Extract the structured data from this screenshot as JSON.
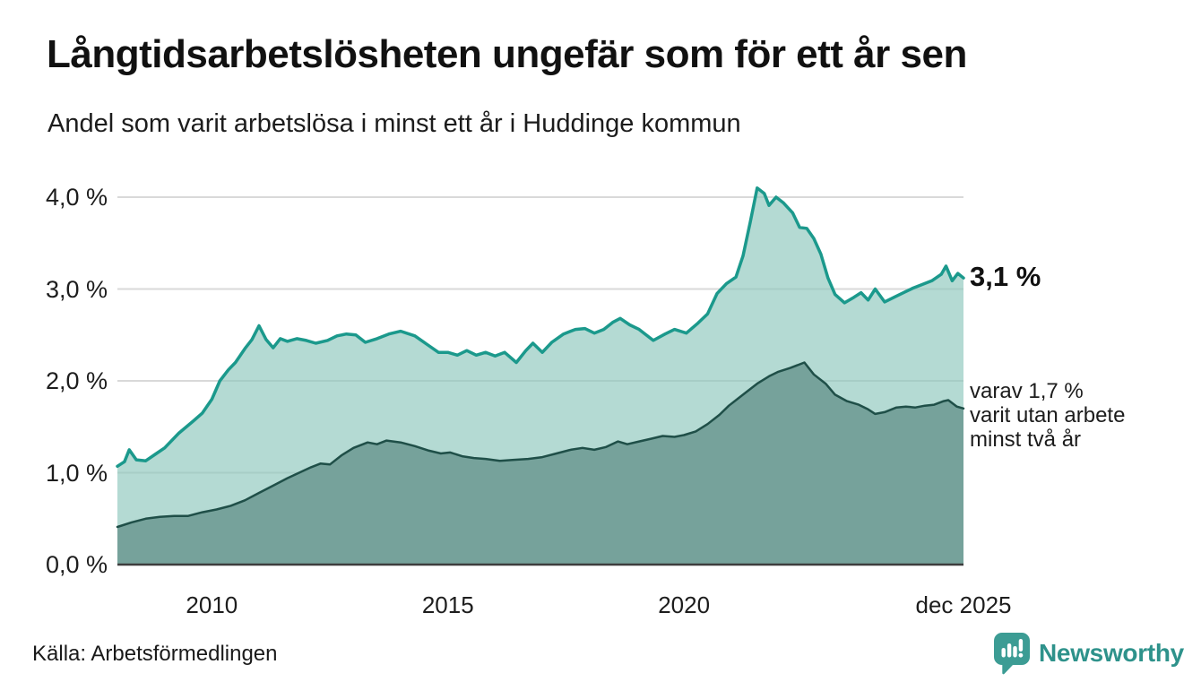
{
  "header": {
    "title": "Långtidsarbetslösheten ungefär som för ett år sen",
    "subtitle": "Andel som varit arbetslösa i minst ett år i Huddinge kommun"
  },
  "chart_data": {
    "type": "area",
    "title": "Långtidsarbetslösheten ungefär som för ett år sen",
    "subtitle": "Andel som varit arbetslösa i minst ett år i Huddinge kommun",
    "xlabel": "",
    "ylabel": "",
    "unit": "%",
    "grid": true,
    "x_axis": {
      "range": [
        2008.0,
        2025.92
      ],
      "ticks": [
        {
          "label": "2010",
          "year": 2010
        },
        {
          "label": "2015",
          "year": 2015
        },
        {
          "label": "2020",
          "year": 2020
        },
        {
          "label": "dec 2025",
          "year": 2025.92
        }
      ]
    },
    "y_axis": {
      "range": [
        0,
        4.3
      ],
      "ticks": [
        {
          "label": "0,0 %",
          "value": 0
        },
        {
          "label": "1,0 %",
          "value": 1
        },
        {
          "label": "2,0 %",
          "value": 2
        },
        {
          "label": "3,0 %",
          "value": 3
        },
        {
          "label": "4,0 %",
          "value": 4
        }
      ]
    },
    "series": [
      {
        "name": "Andel arbetslösa minst ett år",
        "end_value": "3,1 %",
        "line_color": "#1B998C",
        "line_width": 3.5,
        "fill_color": "#8DC7BC",
        "fill_opacity": 0.66,
        "points": [
          [
            2008.0,
            1.07
          ],
          [
            2008.15,
            1.12
          ],
          [
            2008.25,
            1.25
          ],
          [
            2008.4,
            1.14
          ],
          [
            2008.6,
            1.13
          ],
          [
            2008.8,
            1.2
          ],
          [
            2009.0,
            1.27
          ],
          [
            2009.3,
            1.43
          ],
          [
            2009.6,
            1.56
          ],
          [
            2009.8,
            1.65
          ],
          [
            2010.0,
            1.8
          ],
          [
            2010.17,
            2.0
          ],
          [
            2010.35,
            2.12
          ],
          [
            2010.5,
            2.2
          ],
          [
            2010.7,
            2.35
          ],
          [
            2010.85,
            2.45
          ],
          [
            2011.0,
            2.6
          ],
          [
            2011.15,
            2.45
          ],
          [
            2011.3,
            2.36
          ],
          [
            2011.45,
            2.46
          ],
          [
            2011.6,
            2.43
          ],
          [
            2011.8,
            2.46
          ],
          [
            2012.0,
            2.44
          ],
          [
            2012.2,
            2.41
          ],
          [
            2012.45,
            2.44
          ],
          [
            2012.65,
            2.49
          ],
          [
            2012.85,
            2.51
          ],
          [
            2013.05,
            2.5
          ],
          [
            2013.25,
            2.42
          ],
          [
            2013.5,
            2.46
          ],
          [
            2013.75,
            2.51
          ],
          [
            2014.0,
            2.54
          ],
          [
            2014.3,
            2.49
          ],
          [
            2014.55,
            2.4
          ],
          [
            2014.8,
            2.31
          ],
          [
            2015.0,
            2.31
          ],
          [
            2015.2,
            2.28
          ],
          [
            2015.4,
            2.33
          ],
          [
            2015.6,
            2.28
          ],
          [
            2015.8,
            2.31
          ],
          [
            2016.0,
            2.27
          ],
          [
            2016.2,
            2.31
          ],
          [
            2016.45,
            2.2
          ],
          [
            2016.65,
            2.33
          ],
          [
            2016.8,
            2.41
          ],
          [
            2017.0,
            2.31
          ],
          [
            2017.2,
            2.42
          ],
          [
            2017.45,
            2.51
          ],
          [
            2017.7,
            2.56
          ],
          [
            2017.9,
            2.57
          ],
          [
            2018.1,
            2.52
          ],
          [
            2018.3,
            2.56
          ],
          [
            2018.5,
            2.64
          ],
          [
            2018.65,
            2.68
          ],
          [
            2018.85,
            2.61
          ],
          [
            2019.05,
            2.56
          ],
          [
            2019.35,
            2.44
          ],
          [
            2019.6,
            2.51
          ],
          [
            2019.8,
            2.56
          ],
          [
            2020.05,
            2.52
          ],
          [
            2020.3,
            2.63
          ],
          [
            2020.5,
            2.73
          ],
          [
            2020.7,
            2.95
          ],
          [
            2020.9,
            3.06
          ],
          [
            2021.1,
            3.13
          ],
          [
            2021.25,
            3.36
          ],
          [
            2021.4,
            3.72
          ],
          [
            2021.55,
            4.1
          ],
          [
            2021.7,
            4.04
          ],
          [
            2021.8,
            3.91
          ],
          [
            2021.95,
            4.0
          ],
          [
            2022.1,
            3.94
          ],
          [
            2022.3,
            3.83
          ],
          [
            2022.45,
            3.67
          ],
          [
            2022.6,
            3.66
          ],
          [
            2022.75,
            3.55
          ],
          [
            2022.9,
            3.38
          ],
          [
            2023.05,
            3.12
          ],
          [
            2023.2,
            2.94
          ],
          [
            2023.4,
            2.85
          ],
          [
            2023.6,
            2.91
          ],
          [
            2023.75,
            2.96
          ],
          [
            2023.9,
            2.88
          ],
          [
            2024.05,
            3.0
          ],
          [
            2024.25,
            2.86
          ],
          [
            2024.45,
            2.91
          ],
          [
            2024.65,
            2.96
          ],
          [
            2024.85,
            3.01
          ],
          [
            2025.05,
            3.05
          ],
          [
            2025.25,
            3.09
          ],
          [
            2025.45,
            3.16
          ],
          [
            2025.55,
            3.25
          ],
          [
            2025.68,
            3.09
          ],
          [
            2025.8,
            3.17
          ],
          [
            2025.92,
            3.12
          ]
        ]
      },
      {
        "name": "varav utan arbete minst två år",
        "end_value": "1,7 %",
        "line_color": "#1F4F48",
        "line_width": 2.5,
        "fill_color": "#76A29B",
        "fill_opacity": 1,
        "points": [
          [
            2008.0,
            0.41
          ],
          [
            2008.3,
            0.46
          ],
          [
            2008.6,
            0.5
          ],
          [
            2008.9,
            0.52
          ],
          [
            2009.2,
            0.53
          ],
          [
            2009.5,
            0.53
          ],
          [
            2009.8,
            0.57
          ],
          [
            2010.1,
            0.6
          ],
          [
            2010.4,
            0.64
          ],
          [
            2010.7,
            0.7
          ],
          [
            2011.0,
            0.78
          ],
          [
            2011.3,
            0.86
          ],
          [
            2011.6,
            0.94
          ],
          [
            2011.85,
            1.0
          ],
          [
            2012.1,
            1.06
          ],
          [
            2012.3,
            1.1
          ],
          [
            2012.5,
            1.09
          ],
          [
            2012.75,
            1.19
          ],
          [
            2013.0,
            1.27
          ],
          [
            2013.3,
            1.33
          ],
          [
            2013.5,
            1.31
          ],
          [
            2013.7,
            1.35
          ],
          [
            2014.0,
            1.33
          ],
          [
            2014.3,
            1.29
          ],
          [
            2014.6,
            1.24
          ],
          [
            2014.85,
            1.21
          ],
          [
            2015.05,
            1.22
          ],
          [
            2015.3,
            1.18
          ],
          [
            2015.55,
            1.16
          ],
          [
            2015.8,
            1.15
          ],
          [
            2016.1,
            1.13
          ],
          [
            2016.4,
            1.14
          ],
          [
            2016.7,
            1.15
          ],
          [
            2017.0,
            1.17
          ],
          [
            2017.3,
            1.21
          ],
          [
            2017.6,
            1.25
          ],
          [
            2017.85,
            1.27
          ],
          [
            2018.1,
            1.25
          ],
          [
            2018.35,
            1.28
          ],
          [
            2018.6,
            1.34
          ],
          [
            2018.8,
            1.31
          ],
          [
            2019.05,
            1.34
          ],
          [
            2019.3,
            1.37
          ],
          [
            2019.55,
            1.4
          ],
          [
            2019.8,
            1.39
          ],
          [
            2020.0,
            1.41
          ],
          [
            2020.25,
            1.45
          ],
          [
            2020.5,
            1.53
          ],
          [
            2020.75,
            1.63
          ],
          [
            2020.95,
            1.73
          ],
          [
            2021.15,
            1.81
          ],
          [
            2021.35,
            1.89
          ],
          [
            2021.55,
            1.97
          ],
          [
            2021.8,
            2.05
          ],
          [
            2022.0,
            2.1
          ],
          [
            2022.25,
            2.14
          ],
          [
            2022.55,
            2.2
          ],
          [
            2022.75,
            2.07
          ],
          [
            2023.0,
            1.97
          ],
          [
            2023.2,
            1.85
          ],
          [
            2023.45,
            1.78
          ],
          [
            2023.7,
            1.74
          ],
          [
            2023.9,
            1.69
          ],
          [
            2024.05,
            1.64
          ],
          [
            2024.25,
            1.66
          ],
          [
            2024.5,
            1.71
          ],
          [
            2024.7,
            1.72
          ],
          [
            2024.9,
            1.71
          ],
          [
            2025.1,
            1.73
          ],
          [
            2025.3,
            1.74
          ],
          [
            2025.5,
            1.78
          ],
          [
            2025.6,
            1.79
          ],
          [
            2025.78,
            1.72
          ],
          [
            2025.92,
            1.7
          ]
        ]
      }
    ],
    "gridline_color": "#d9d9d9",
    "baseline_color": "#3d3d3d",
    "legend_position": "right-annotations"
  },
  "annotations": {
    "total_end_label": "3,1 %",
    "sub_lines": [
      "varav 1,7 %",
      "varit utan arbete",
      "minst två år"
    ]
  },
  "footer": {
    "source": "Källa: Arbetsförmedlingen",
    "brand": "Newsworthy",
    "brand_color": "#2E928B",
    "brand_icon": "speech-bubble-bar-chart-exclamation",
    "brand_icon_color": "#3C9C94"
  }
}
